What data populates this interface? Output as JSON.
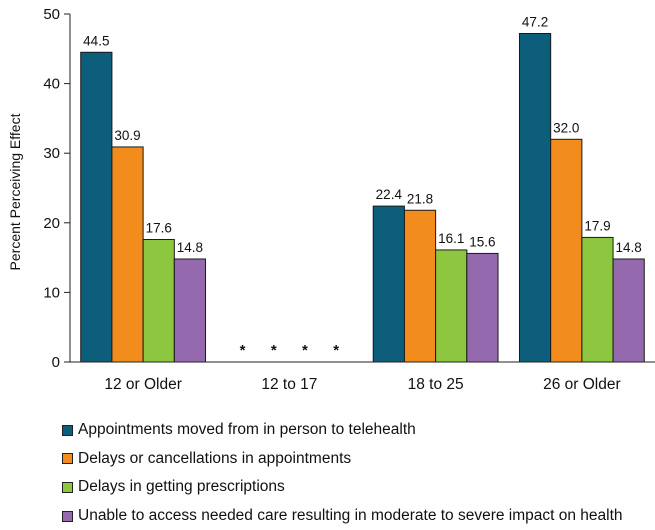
{
  "chart_data": {
    "type": "bar",
    "ylabel": "Percent Perceiving Effect",
    "xlabel": "",
    "ylim": [
      0,
      50
    ],
    "yticks": [
      0,
      10,
      20,
      30,
      40,
      50
    ],
    "grid": false,
    "legend_position": "bottom",
    "categories": [
      "12 or Older",
      "12 to 17",
      "18 to 25",
      "26 or Older"
    ],
    "series": [
      {
        "name": "Appointments moved from in person to telehealth",
        "color": "#0d5e7a",
        "values": [
          44.5,
          null,
          22.4,
          47.2
        ],
        "labels": [
          "44.5",
          "*",
          "22.4",
          "47.2"
        ]
      },
      {
        "name": "Delays or cancellations in appointments",
        "color": "#f28c1d",
        "values": [
          30.9,
          null,
          21.8,
          32.0
        ],
        "labels": [
          "30.9",
          "*",
          "21.8",
          "32.0"
        ]
      },
      {
        "name": "Delays in getting prescriptions",
        "color": "#8dc63f",
        "values": [
          17.6,
          null,
          16.1,
          17.9
        ],
        "labels": [
          "17.6",
          "*",
          "16.1",
          "17.9"
        ]
      },
      {
        "name": "Unable to access needed care resulting in moderate to severe impact on health",
        "color": "#9469ad",
        "values": [
          14.8,
          null,
          15.6,
          14.8
        ],
        "labels": [
          "14.8",
          "*",
          "15.6",
          "14.8"
        ]
      }
    ]
  }
}
